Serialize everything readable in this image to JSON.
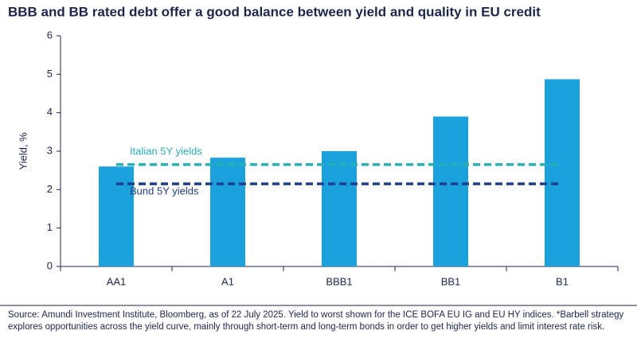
{
  "chart_data": {
    "type": "bar",
    "title": "BBB and BB rated debt offer a good balance between yield and quality in EU credit",
    "ylabel": "Yield, %",
    "categories": [
      "AA1",
      "A1",
      "BBB1",
      "BB1",
      "B1"
    ],
    "values": [
      2.6,
      2.83,
      3.0,
      3.9,
      4.87
    ],
    "color": "#1ba1dc",
    "ylim": [
      0,
      6
    ],
    "yticks": [
      0,
      1,
      2,
      3,
      4,
      5,
      6
    ],
    "grid": false,
    "reference_lines": [
      {
        "name": "Italian 5Y yields",
        "value": 2.65,
        "color": "#25b1b5"
      },
      {
        "name": "Bund 5Y yields",
        "value": 2.15,
        "color": "#1f3f8f"
      }
    ],
    "source": "Source: Amundi Investment Institute, Bloomberg, as of 22 July 2025. Yield to worst shown for the ICE BOFA EU IG and EU HY indices. *Barbell strategy explores opportunities across the yield curve, mainly through short-term and long-term bonds in order to get higher yields and limit interest rate risk."
  }
}
